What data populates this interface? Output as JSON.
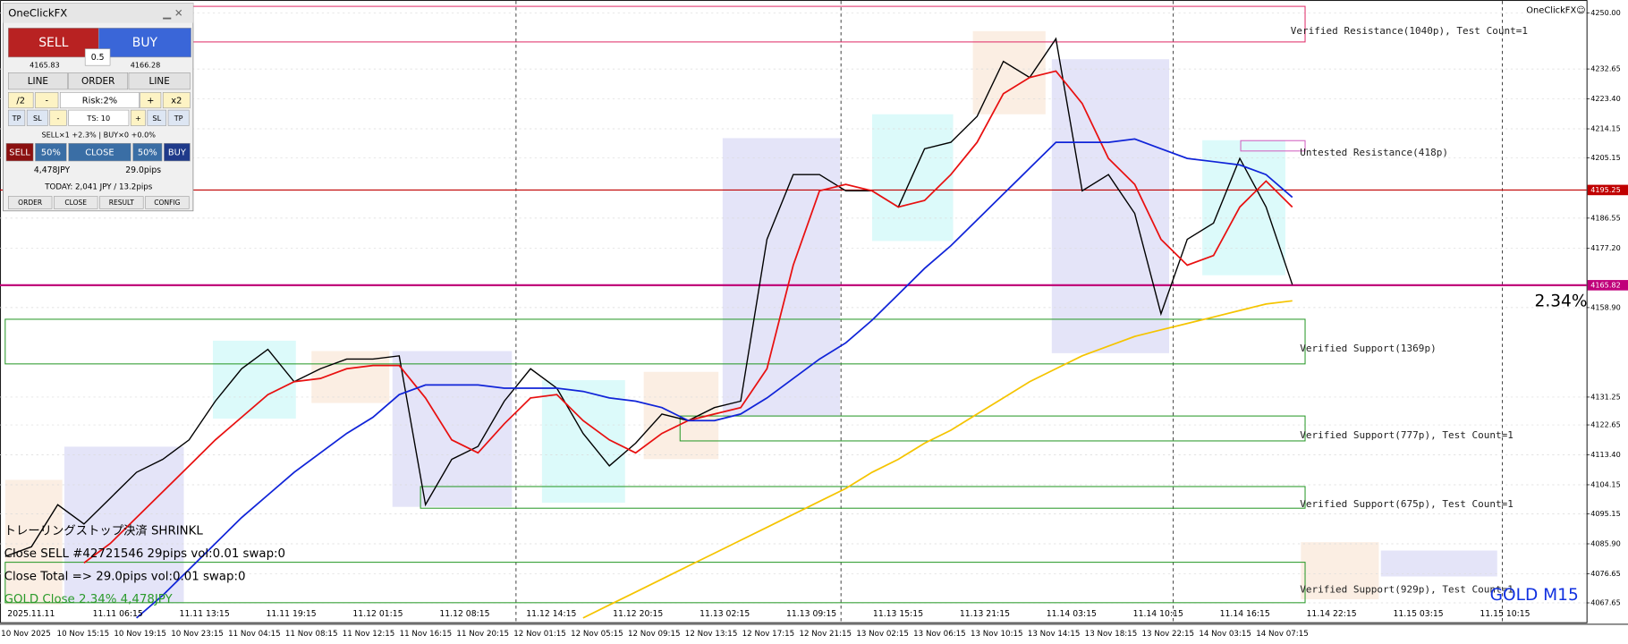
{
  "panel": {
    "title": "OneClickFX",
    "sell": "SELL",
    "buy": "BUY",
    "lot": "0.5",
    "bid": "4165.83",
    "ask": "4166.28",
    "row1": [
      "LINE",
      "ORDER",
      "LINE"
    ],
    "row2": [
      "/2",
      "-",
      "Risk:2%",
      "+",
      "x2"
    ],
    "row3": [
      "TP",
      "SL",
      "-",
      "TS: 10",
      "+",
      "SL",
      "TP"
    ],
    "positions": "SELL×1 +2.3% | BUY×0 +0.0%",
    "row4": [
      "SELL",
      "50%",
      "CLOSE",
      "50%",
      "BUY"
    ],
    "profit": "4,478JPY",
    "pips": "29.0pips",
    "today": "TODAY: 2,041 JPY / 13.2pips",
    "tabs": [
      "ORDER",
      "CLOSE",
      "RESULT",
      "CONFIG"
    ]
  },
  "chart_data": {
    "type": "line",
    "symbol": "GOLD M15",
    "watermark": "OneClickFX☺",
    "change_label": "2.34%",
    "messages": [
      "トレーリングストップ決済 SHRINKL",
      "Close SELL #42721546 29pips vol:0.01 swap:0",
      "Close Total => 29.0pips vol:0.01 swap:0",
      "GOLD Close  2.34% 4,478JPY"
    ],
    "ylim": [
      4062,
      4253
    ],
    "yticks": [
      {
        "value": 4250,
        "label": "4250.00"
      },
      {
        "value": 4232.65,
        "label": "4232.65"
      },
      {
        "value": 4223.4,
        "label": "4223.40"
      },
      {
        "value": 4214.15,
        "label": "4214.15"
      },
      {
        "value": 4205.15,
        "label": "4205.15"
      },
      {
        "value": 4186.55,
        "label": "4186.55"
      },
      {
        "value": 4177.2,
        "label": "4177.20"
      },
      {
        "value": 4158.9,
        "label": "4158.90"
      },
      {
        "value": 4131.25,
        "label": "4131.25"
      },
      {
        "value": 4122.65,
        "label": "4122.65"
      },
      {
        "value": 4113.4,
        "label": "4113.40"
      },
      {
        "value": 4104.15,
        "label": "4104.15"
      },
      {
        "value": 4095.15,
        "label": "4095.15"
      },
      {
        "value": 4085.9,
        "label": "4085.90"
      },
      {
        "value": 4076.65,
        "label": "4076.65"
      },
      {
        "value": 4067.65,
        "label": "4067.65"
      }
    ],
    "grid": true,
    "x_labels": [
      "10 Nov 2025",
      "10 Nov 15:15",
      "10 Nov 19:15",
      "10 Nov 23:15",
      "11 Nov 04:15",
      "11 Nov 08:15",
      "11 Nov 12:15",
      "11 Nov 16:15",
      "11 Nov 20:15",
      "12 Nov 01:15",
      "12 Nov 05:15",
      "12 Nov 09:15",
      "12 Nov 13:15",
      "12 Nov 17:15",
      "12 Nov 21:15",
      "13 Nov 02:15",
      "13 Nov 06:15",
      "13 Nov 10:15",
      "13 Nov 14:15",
      "13 Nov 18:15",
      "13 Nov 22:15",
      "14 Nov 03:15",
      "14 Nov 07:15"
    ],
    "x_labels_top": [
      "2025.11.11",
      "11.11 06:15",
      "11.11 13:15",
      "11.11 19:15",
      "11.12 01:15",
      "11.12 08:15",
      "11.12 14:15",
      "11.12 20:15",
      "11.13 02:15",
      "11.13 09:15",
      "11.13 15:15",
      "11.13 21:15",
      "11.14 03:15",
      "11.14 10:15",
      "11.14 16:15",
      "11.14 22:15",
      "11.15 03:15",
      "11.15 10:15"
    ],
    "series": [
      {
        "color": "#000000",
        "values": [
          4082,
          4085,
          4098,
          4092,
          4100,
          4108,
          4112,
          4118,
          4130,
          4140,
          4146,
          4136,
          4140,
          4143,
          4143,
          4144,
          4098,
          4112,
          4116,
          4130,
          4140,
          4134,
          4120,
          4110,
          4117,
          4126,
          4124,
          4128,
          4130,
          4180,
          4200,
          4200,
          4195,
          4195,
          4190,
          4208,
          4210,
          4218,
          4235,
          4230,
          4242,
          4195,
          4200,
          4188,
          4157,
          4180,
          4185,
          4205,
          4190,
          4166
        ]
      },
      {
        "color": "#e81010",
        "values": [
          null,
          null,
          null,
          4080,
          4086,
          4094,
          4102,
          4110,
          4118,
          4125,
          4132,
          4136,
          4137,
          4140,
          4141,
          4141,
          4131,
          4118,
          4114,
          4123,
          4131,
          4132,
          4124,
          4118,
          4114,
          4120,
          4124,
          4126,
          4128,
          4140,
          4172,
          4195,
          4197,
          4195,
          4190,
          4192,
          4200,
          4210,
          4225,
          4230,
          4232,
          4222,
          4205,
          4197,
          4180,
          4172,
          4175,
          4190,
          4198,
          4190
        ]
      },
      {
        "color": "#1024d8",
        "values": [
          null,
          null,
          null,
          null,
          null,
          4063,
          4070,
          4078,
          4086,
          4094,
          4101,
          4108,
          4114,
          4120,
          4125,
          4132,
          4135,
          4135,
          4135,
          4134,
          4134,
          4134,
          4133,
          4131,
          4130,
          4128,
          4124,
          4124,
          4126,
          4131,
          4137,
          4143,
          4148,
          4155,
          4163,
          4171,
          4178,
          4186,
          4194,
          4202,
          4210,
          4210,
          4210,
          4211,
          4208,
          4205,
          4204,
          4203,
          4200,
          4193
        ]
      },
      {
        "color": "#f5c400",
        "values": [
          null,
          null,
          null,
          null,
          null,
          null,
          null,
          null,
          null,
          null,
          null,
          null,
          null,
          null,
          null,
          null,
          null,
          null,
          null,
          null,
          null,
          null,
          4063,
          4067,
          4071,
          4075,
          4079,
          4083,
          4087,
          4091,
          4095,
          4099,
          4103,
          4108,
          4112,
          4117,
          4121,
          4126,
          4131,
          4136,
          4140,
          4144,
          4147,
          4150,
          4152,
          4154,
          4156,
          4158,
          4160,
          4161
        ]
      }
    ],
    "levels": [
      {
        "value": 4195.25,
        "label": "4195.25",
        "color": "#c00000"
      },
      {
        "value": 4165.82,
        "label": "4165.82",
        "color": "#c0007a"
      }
    ],
    "zones": [
      {
        "label": "Verified Resistance(1040p), Test Count=1",
        "top": 4252,
        "bottom": 4241,
        "color": "#e0306a"
      },
      {
        "label": "Untested Resistance(418p)",
        "top": 4210.5,
        "bottom": 4207.3,
        "color": "#d060c0"
      },
      {
        "label": "Verified Support(1369p)",
        "top": 4155.3,
        "bottom": 4141.5,
        "color": "#2a9a2a"
      },
      {
        "label": "Verified Support(777p), Test Count=1",
        "top": 4125.4,
        "bottom": 4117.7,
        "color": "#2a9a2a"
      },
      {
        "label": "Verified Support(675p), Test Count=1",
        "top": 4103.6,
        "bottom": 4096.9,
        "color": "#2a9a2a"
      },
      {
        "label": "Verified Support(929p), Test Count=1",
        "top": 4080.2,
        "bottom": 4067.7,
        "color": "#2a9a2a"
      }
    ]
  }
}
